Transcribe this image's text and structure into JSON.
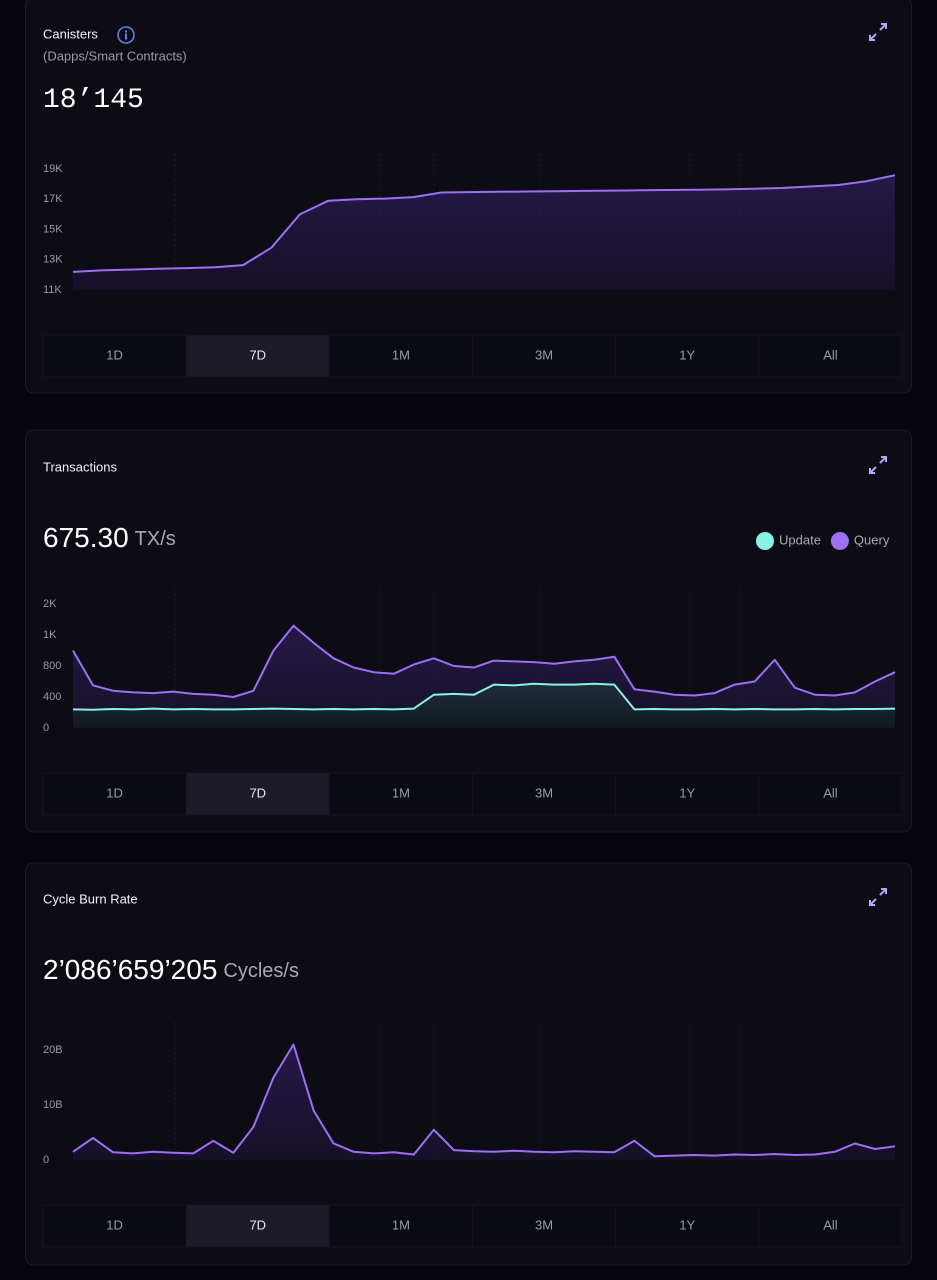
{
  "panels": [
    {
      "title": "Canisters",
      "subtitle": "(Dapps/Smart Contracts)",
      "value": "18’145",
      "chart": {
        "type": "line",
        "ylim": [
          11000,
          20000
        ],
        "yticks": [
          {
            "value": 11000,
            "label": "11K"
          },
          {
            "value": 13000,
            "label": "13K"
          },
          {
            "value": 15000,
            "label": "15K"
          },
          {
            "value": 17000,
            "label": "17K"
          },
          {
            "value": 19000,
            "label": "19K"
          }
        ],
        "series": [
          {
            "color": "#9d6ff2",
            "values": [
              12200,
              12300,
              12350,
              12400,
              12450,
              12500,
              12650,
              13800,
              16000,
              16900,
              17000,
              17050,
              17150,
              17450,
              17480,
              17500,
              17520,
              17540,
              17560,
              17580,
              17600,
              17620,
              17640,
              17660,
              17700,
              17750,
              17850,
              17950,
              18200,
              18600
            ]
          }
        ]
      },
      "ranges": [
        "1D",
        "7D",
        "1M",
        "3M",
        "1Y",
        "All"
      ],
      "selected_range": 1
    },
    {
      "title": "Transactions",
      "value": "675.30",
      "unit": "TX/s",
      "chart": {
        "type": "line",
        "ylim": [
          0,
          1800
        ],
        "yticks": [
          0,
          400,
          800,
          {
            "value": 1200,
            "label": "1K"
          },
          {
            "value": 1600,
            "label": "2K"
          }
        ],
        "series": [
          {
            "name": "Query",
            "color": "#9d6ff2",
            "values": [
              1000,
              550,
              480,
              460,
              450,
              470,
              440,
              430,
              400,
              480,
              1000,
              1320,
              1100,
              900,
              780,
              720,
              700,
              820,
              900,
              800,
              780,
              870,
              860,
              850,
              830,
              860,
              880,
              920,
              500,
              470,
              430,
              420,
              450,
              560,
              600,
              880,
              520,
              430,
              420,
              460,
              600,
              720
            ]
          },
          {
            "name": "Update",
            "color": "#86f3e6",
            "values": [
              240,
              235,
              245,
              240,
              250,
              240,
              245,
              240,
              240,
              245,
              250,
              245,
              240,
              245,
              240,
              245,
              240,
              250,
              430,
              440,
              430,
              560,
              550,
              570,
              560,
              560,
              570,
              560,
              240,
              245,
              240,
              240,
              245,
              240,
              245,
              240,
              240,
              245,
              240,
              245,
              245,
              250
            ]
          }
        ],
        "legend_order": [
          1,
          0
        ]
      },
      "ranges": [
        "1D",
        "7D",
        "1M",
        "3M",
        "1Y",
        "All"
      ],
      "selected_range": 1
    },
    {
      "title": "Cycle Burn Rate",
      "value": "2’086’659’205",
      "unit": "Cycles/s",
      "chart": {
        "type": "line",
        "ylim": [
          0,
          25000000000
        ],
        "yticks": [
          0,
          {
            "value": 10000000000,
            "label": "10B"
          },
          {
            "value": 20000000000,
            "label": "20B"
          }
        ],
        "series": [
          {
            "color": "#9d6ff2",
            "values": [
              1500000000,
              4000000000,
              1400000000,
              1200000000,
              1500000000,
              1300000000,
              1200000000,
              3500000000,
              1300000000,
              6000000000,
              15000000000,
              21000000000,
              9000000000,
              3000000000,
              1500000000,
              1200000000,
              1400000000,
              1000000000,
              5500000000,
              1800000000,
              1600000000,
              1500000000,
              1700000000,
              1500000000,
              1400000000,
              1600000000,
              1500000000,
              1400000000,
              3500000000,
              700000000,
              800000000,
              900000000,
              800000000,
              1000000000,
              900000000,
              1100000000,
              900000000,
              1000000000,
              1500000000,
              3000000000,
              2000000000,
              2500000000
            ]
          }
        ]
      },
      "ranges": [
        "1D",
        "7D",
        "1M",
        "3M",
        "1Y",
        "All"
      ],
      "selected_range": 1
    }
  ]
}
